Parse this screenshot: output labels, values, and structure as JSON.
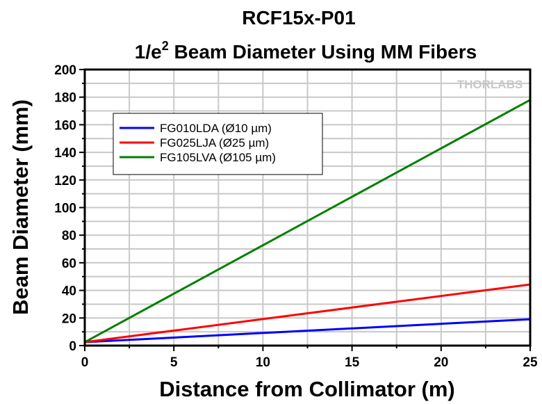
{
  "chart_data": {
    "type": "line",
    "title": "RCF15x-P01",
    "subtitle_prefix": "1/e",
    "subtitle_sup": "2",
    "subtitle_suffix": " Beam Diameter Using MM Fibers",
    "xlabel": "Distance from Collimator (m)",
    "ylabel": "Beam Diameter (mm)",
    "xlim": [
      0,
      25
    ],
    "ylim": [
      0,
      200
    ],
    "xticks": [
      0,
      5,
      10,
      15,
      20,
      25
    ],
    "yticks": [
      0,
      20,
      40,
      60,
      80,
      100,
      120,
      140,
      160,
      180,
      200
    ],
    "grid": true,
    "legend_position": "top-left",
    "watermark": "THORLABS",
    "series": [
      {
        "name": "FG010LDA (Ø10 µm)",
        "color": "#0000ff",
        "x": [
          0,
          25
        ],
        "y": [
          2.5,
          19.1
        ]
      },
      {
        "name": "FG025LJA (Ø25 µm)",
        "color": "#ff0000",
        "x": [
          0,
          25
        ],
        "y": [
          2.5,
          44.3
        ]
      },
      {
        "name": "FG105LVA (Ø105 µm)",
        "color": "#008000",
        "x": [
          0,
          25
        ],
        "y": [
          2.5,
          178
        ]
      }
    ]
  }
}
